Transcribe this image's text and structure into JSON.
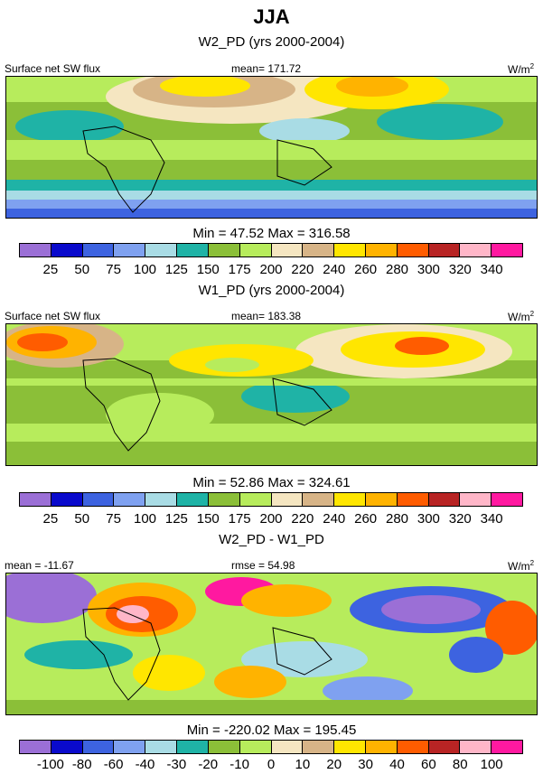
{
  "title": "JJA",
  "colors": [
    "#9b6fd6",
    "#0a0acc",
    "#3d63e0",
    "#7fa1f0",
    "#a9dce5",
    "#1fb3a6",
    "#8bbf38",
    "#b7ec5c",
    "#f5e6c1",
    "#d7b487",
    "#ffe600",
    "#ffb300",
    "#ff5c00",
    "#b82424",
    "#ffb6c8",
    "#ff19a0"
  ],
  "panels": [
    {
      "heading": "W2_PD (yrs 2000-2004)",
      "left_label": "Surface net SW flux",
      "center_label": "mean= 171.72",
      "units": "W/m",
      "units_sup": "2",
      "minmax": "Min =  47.52 Max = 316.58",
      "ticks": [
        "25",
        "50",
        "75",
        "100",
        "125",
        "150",
        "175",
        "200",
        "220",
        "240",
        "260",
        "280",
        "300",
        "320",
        "340"
      ]
    },
    {
      "heading": "W1_PD (yrs 2000-2004)",
      "left_label": "Surface net SW flux",
      "center_label": "mean= 183.38",
      "units": "W/m",
      "units_sup": "2",
      "minmax": "Min =  52.86 Max = 324.61",
      "ticks": [
        "25",
        "50",
        "75",
        "100",
        "125",
        "150",
        "175",
        "200",
        "220",
        "240",
        "260",
        "280",
        "300",
        "320",
        "340"
      ]
    },
    {
      "heading": "W2_PD - W1_PD",
      "left_label": "mean = -11.67",
      "center_label": "rmse = 54.98",
      "units": "W/m",
      "units_sup": "2",
      "minmax": "Min = -220.02 Max = 195.45",
      "ticks": [
        "-100",
        "-80",
        "-60",
        "-40",
        "-30",
        "-20",
        "-10",
        "0",
        "10",
        "20",
        "30",
        "40",
        "60",
        "80",
        "100"
      ]
    }
  ]
}
